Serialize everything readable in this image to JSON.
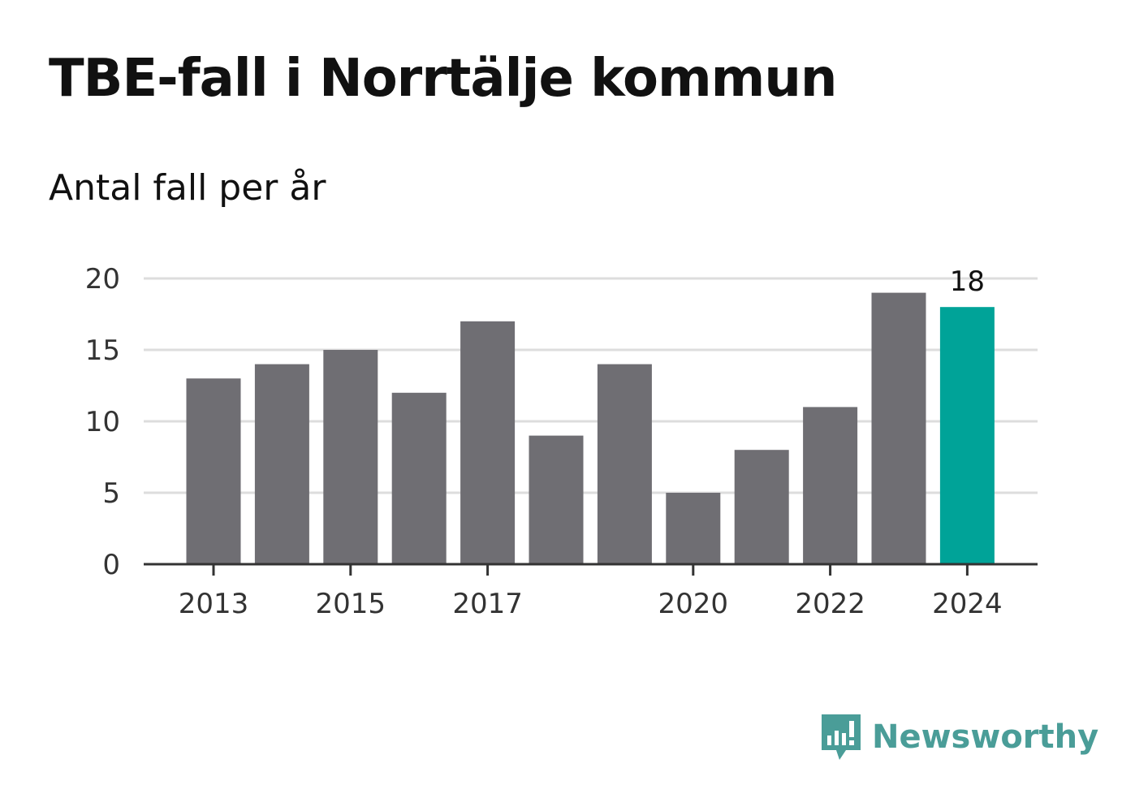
{
  "chart_data": {
    "type": "bar",
    "title": "TBE-fall i Norrtälje kommun",
    "subtitle": "Antal fall per år",
    "categories": [
      "2013",
      "2014",
      "2015",
      "2016",
      "2017",
      "2018",
      "2019",
      "2020",
      "2021",
      "2022",
      "2023",
      "2024"
    ],
    "values": [
      13,
      14,
      15,
      12,
      17,
      9,
      14,
      5,
      8,
      11,
      19,
      18
    ],
    "x_tick_labels": [
      "2013",
      "2015",
      "2017",
      "2020",
      "2022",
      "2024"
    ],
    "y_ticks": [
      0,
      5,
      10,
      15,
      20
    ],
    "ylim": [
      0,
      20
    ],
    "xlabel": "",
    "ylabel": "",
    "grid": true,
    "highlight": {
      "category": "2024",
      "label": "18"
    },
    "colors": {
      "bar": "#6f6e73",
      "highlight": "#00a398",
      "grid": "#dddddd",
      "axis": "#333333"
    }
  },
  "brand": {
    "name": "Newsworthy",
    "icon": "newsworthy-logo-icon",
    "color": "#4a9d98"
  }
}
